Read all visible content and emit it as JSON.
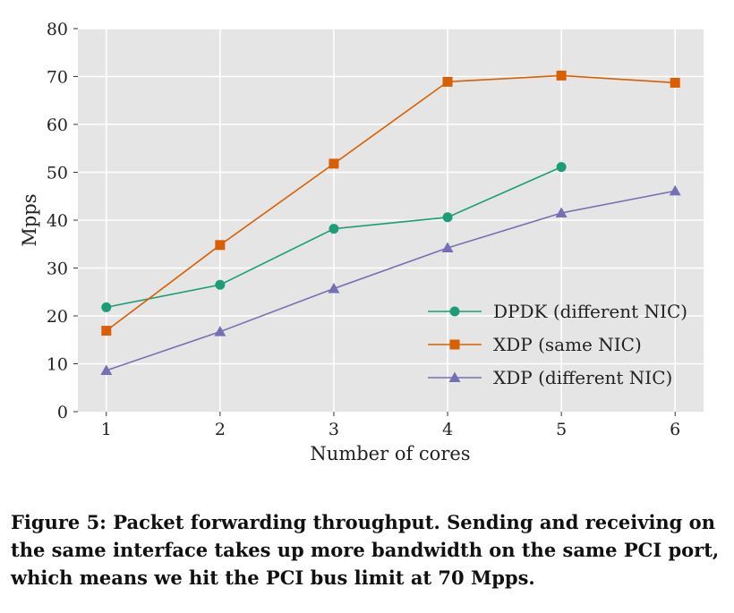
{
  "chart_data": {
    "type": "line",
    "title": "",
    "xlabel": "Number of cores",
    "ylabel": "Mpps",
    "x": [
      1,
      2,
      3,
      4,
      5,
      6
    ],
    "xlim": [
      0.75,
      6.25
    ],
    "ylim": [
      0,
      80
    ],
    "yticks": [
      0,
      10,
      20,
      30,
      40,
      50,
      60,
      70,
      80
    ],
    "grid": true,
    "legend_position": "center-right",
    "series": [
      {
        "name": "DPDK (different NIC)",
        "color": "#1b9e77",
        "marker": "circle",
        "x": [
          1,
          2,
          3,
          4,
          5
        ],
        "values": [
          21.8,
          26.5,
          38.2,
          40.6,
          51.1
        ]
      },
      {
        "name": "XDP (same NIC)",
        "color": "#d95f02",
        "marker": "square",
        "x": [
          1,
          2,
          3,
          4,
          5,
          6
        ],
        "values": [
          16.9,
          34.8,
          51.8,
          68.9,
          70.2,
          68.7
        ]
      },
      {
        "name": "XDP (different NIC)",
        "color": "#7570b3",
        "marker": "triangle",
        "x": [
          1,
          2,
          3,
          4,
          5,
          6
        ],
        "values": [
          8.6,
          16.7,
          25.7,
          34.2,
          41.5,
          46.1
        ]
      }
    ]
  },
  "caption": "Figure 5:  Packet forwarding throughput. Sending and receiving on the same interface takes up more bandwidth on the same PCI port, which means we hit the PCI bus limit at 70 Mpps."
}
